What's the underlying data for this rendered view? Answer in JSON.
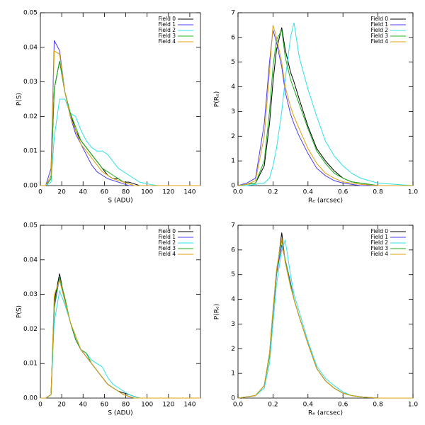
{
  "chart_data": [
    {
      "type": "line",
      "x_label": "S (ADU)",
      "y_label": "P(S)",
      "legend": "upper right",
      "grid": false,
      "x": [
        0,
        5,
        10,
        13,
        18,
        23,
        28,
        33,
        38,
        43,
        48,
        53,
        58,
        63,
        68,
        73,
        78,
        83,
        88,
        93,
        100,
        110,
        120,
        130,
        140,
        150
      ],
      "xlim": [
        0,
        150
      ],
      "xticks": [
        0,
        20,
        40,
        60,
        80,
        100,
        120,
        140
      ],
      "ylim": [
        0,
        0.05
      ],
      "yticks": [
        {
          "value": 0,
          "label": "0.00"
        },
        0.01,
        0.02,
        0.03,
        0.04,
        0.05
      ],
      "series": [
        {
          "name": "Field 0",
          "color": "#000000",
          "values": [
            0,
            0,
            0.002,
            0.028,
            0.036,
            0.027,
            0.021,
            0.016,
            0.013,
            0.011,
            0.009,
            0.007,
            0.005,
            0.003,
            0.002,
            0.002,
            0.001,
            0.001,
            0.0005,
            0,
            0,
            0,
            0,
            0,
            0,
            0
          ]
        },
        {
          "name": "Field 1",
          "color": "#4a3cf0",
          "values": [
            0,
            0,
            0.005,
            0.042,
            0.039,
            0.027,
            0.02,
            0.015,
            0.012,
            0.009,
            0.006,
            0.004,
            0.003,
            0.002,
            0.0015,
            0.001,
            0.0005,
            0,
            0,
            0,
            0,
            0,
            0,
            0,
            0,
            0
          ]
        },
        {
          "name": "Field 2",
          "color": "#30e0e8",
          "values": [
            0,
            0,
            0.001,
            0.014,
            0.025,
            0.025,
            0.021,
            0.02,
            0.016,
            0.013,
            0.011,
            0.01,
            0.01,
            0.009,
            0.007,
            0.005,
            0.004,
            0.003,
            0.002,
            0.001,
            0.0005,
            0,
            0,
            0,
            0,
            0
          ]
        },
        {
          "name": "Field 3",
          "color": "#18b018",
          "values": [
            0,
            0,
            0.002,
            0.028,
            0.036,
            0.027,
            0.021,
            0.017,
            0.013,
            0.011,
            0.009,
            0.007,
            0.005,
            0.004,
            0.003,
            0.002,
            0.001,
            0.0005,
            0,
            0,
            0,
            0,
            0,
            0,
            0,
            0
          ]
        },
        {
          "name": "Field 4",
          "color": "#e0a010",
          "values": [
            0,
            0,
            0.003,
            0.039,
            0.038,
            0.027,
            0.02,
            0.016,
            0.012,
            0.01,
            0.008,
            0.006,
            0.004,
            0.003,
            0.002,
            0.0015,
            0.001,
            0.0005,
            0,
            0,
            0,
            0,
            0,
            0,
            0,
            0
          ]
        }
      ]
    },
    {
      "type": "line",
      "x_label": "Rₑ (arcsec)",
      "y_label": "P(Rₑ)",
      "legend": "upper right",
      "grid": false,
      "x": [
        0,
        0.05,
        0.1,
        0.15,
        0.18,
        0.2,
        0.22,
        0.25,
        0.27,
        0.3,
        0.32,
        0.35,
        0.4,
        0.45,
        0.5,
        0.55,
        0.6,
        0.65,
        0.7,
        0.8,
        0.9,
        1.0
      ],
      "xlim": [
        0,
        1
      ],
      "xticks": [
        {
          "value": 0,
          "label": "0.0"
        },
        0.2,
        0.4,
        0.6,
        0.8,
        {
          "value": 1,
          "label": "1.0"
        }
      ],
      "ylim": [
        0,
        7
      ],
      "yticks": [
        0,
        1,
        2,
        3,
        4,
        5,
        6,
        7
      ],
      "series": [
        {
          "name": "Field 0",
          "color": "#000000",
          "values": [
            0,
            0.05,
            0.1,
            0.8,
            2.5,
            4.2,
            5.5,
            6.4,
            5.5,
            4.6,
            4.2,
            3.5,
            2.4,
            1.5,
            1.0,
            0.6,
            0.3,
            0.15,
            0.1,
            0,
            0,
            0
          ]
        },
        {
          "name": "Field 1",
          "color": "#4a3cf0",
          "values": [
            0,
            0.1,
            0.3,
            2.5,
            5.0,
            6.3,
            5.8,
            4.8,
            3.8,
            2.9,
            2.5,
            2.0,
            1.3,
            0.7,
            0.4,
            0.2,
            0.1,
            0.05,
            0,
            0,
            0,
            0
          ]
        },
        {
          "name": "Field 2",
          "color": "#30e0e8",
          "values": [
            0,
            0,
            0.05,
            0.1,
            0.3,
            0.8,
            1.5,
            3.0,
            4.3,
            6.0,
            6.6,
            5.2,
            3.9,
            2.8,
            1.8,
            1.2,
            0.8,
            0.5,
            0.3,
            0.1,
            0.05,
            0
          ]
        },
        {
          "name": "Field 3",
          "color": "#18b018",
          "values": [
            0,
            0.05,
            0.1,
            1.0,
            3.0,
            4.8,
            5.9,
            6.3,
            5.2,
            4.3,
            3.9,
            3.3,
            2.3,
            1.4,
            0.9,
            0.5,
            0.3,
            0.15,
            0.1,
            0,
            0,
            0
          ]
        },
        {
          "name": "Field 4",
          "color": "#e0a010",
          "values": [
            0,
            0.05,
            0.2,
            2.0,
            4.6,
            6.5,
            6.0,
            5.0,
            4.0,
            3.2,
            2.8,
            2.3,
            1.5,
            0.9,
            0.5,
            0.3,
            0.15,
            0.1,
            0.05,
            0,
            0,
            0
          ]
        }
      ]
    },
    {
      "type": "line",
      "x_label": "S (ADU)",
      "y_label": "P(S)",
      "legend": "upper right",
      "grid": false,
      "x": [
        0,
        5,
        10,
        13,
        18,
        23,
        28,
        33,
        38,
        43,
        48,
        53,
        58,
        63,
        68,
        73,
        78,
        83,
        88,
        93,
        100,
        110,
        120,
        130,
        140,
        150
      ],
      "xlim": [
        0,
        150
      ],
      "xticks": [
        0,
        20,
        40,
        60,
        80,
        100,
        120,
        140
      ],
      "ylim": [
        0,
        0.05
      ],
      "yticks": [
        {
          "value": 0,
          "label": "0.00"
        },
        0.01,
        0.02,
        0.03,
        0.04,
        0.05
      ],
      "series": [
        {
          "name": "Field 0",
          "color": "#000000",
          "values": [
            0,
            0,
            0.001,
            0.028,
            0.036,
            0.028,
            0.022,
            0.017,
            0.014,
            0.012,
            0.01,
            0.008,
            0.006,
            0.004,
            0.003,
            0.002,
            0.0015,
            0.001,
            0.0005,
            0,
            0,
            0,
            0,
            0,
            0,
            0
          ]
        },
        {
          "name": "Field 1",
          "color": "#4a3cf0",
          "values": [
            0,
            0,
            0.001,
            0.026,
            0.035,
            0.028,
            0.022,
            0.017,
            0.014,
            0.012,
            0.01,
            0.008,
            0.006,
            0.004,
            0.003,
            0.002,
            0.001,
            0.0005,
            0,
            0,
            0,
            0,
            0,
            0,
            0,
            0
          ]
        },
        {
          "name": "Field 2",
          "color": "#30e0e8",
          "values": [
            0,
            0,
            0.001,
            0.022,
            0.031,
            0.027,
            0.022,
            0.018,
            0.014,
            0.013,
            0.011,
            0.01,
            0.009,
            0.006,
            0.004,
            0.003,
            0.002,
            0.001,
            0.0005,
            0,
            0,
            0,
            0,
            0,
            0,
            0
          ]
        },
        {
          "name": "Field 3",
          "color": "#18b018",
          "values": [
            0,
            0,
            0.001,
            0.027,
            0.035,
            0.029,
            0.022,
            0.017,
            0.014,
            0.013,
            0.01,
            0.008,
            0.006,
            0.004,
            0.003,
            0.002,
            0.001,
            0.0005,
            0,
            0,
            0,
            0,
            0,
            0,
            0,
            0
          ]
        },
        {
          "name": "Field 4",
          "color": "#e0a010",
          "values": [
            0,
            0,
            0.001,
            0.03,
            0.034,
            0.028,
            0.022,
            0.018,
            0.014,
            0.012,
            0.01,
            0.008,
            0.006,
            0.004,
            0.003,
            0.002,
            0.001,
            0.0005,
            0,
            0,
            0,
            0,
            0,
            0,
            0,
            0
          ]
        }
      ]
    },
    {
      "type": "line",
      "x_label": "Rₑ (arcsec)",
      "y_label": "P(Rₑ)",
      "legend": "upper right",
      "grid": false,
      "x": [
        0,
        0.05,
        0.1,
        0.15,
        0.18,
        0.2,
        0.22,
        0.25,
        0.27,
        0.3,
        0.32,
        0.35,
        0.4,
        0.45,
        0.5,
        0.55,
        0.6,
        0.65,
        0.7,
        0.8,
        0.9,
        1.0
      ],
      "xlim": [
        0,
        1
      ],
      "xticks": [
        {
          "value": 0,
          "label": "0.0"
        },
        0.2,
        0.4,
        0.6,
        0.8,
        {
          "value": 1,
          "label": "1.0"
        }
      ],
      "ylim": [
        0,
        7
      ],
      "yticks": [
        0,
        1,
        2,
        3,
        4,
        5,
        6,
        7
      ],
      "series": [
        {
          "name": "Field 0",
          "color": "#000000",
          "values": [
            0,
            0.05,
            0.1,
            0.5,
            1.8,
            3.5,
            5.0,
            6.7,
            5.5,
            4.6,
            4.0,
            3.3,
            2.2,
            1.2,
            0.7,
            0.4,
            0.2,
            0.1,
            0.05,
            0,
            0,
            0
          ]
        },
        {
          "name": "Field 1",
          "color": "#4a3cf0",
          "values": [
            0,
            0.05,
            0.1,
            0.5,
            1.7,
            3.4,
            5.0,
            6.2,
            5.6,
            4.7,
            4.0,
            3.3,
            2.2,
            1.2,
            0.7,
            0.4,
            0.2,
            0.1,
            0.05,
            0,
            0,
            0
          ]
        },
        {
          "name": "Field 2",
          "color": "#30e0e8",
          "values": [
            0,
            0.05,
            0.1,
            0.4,
            1.4,
            3.0,
            4.6,
            6.0,
            6.4,
            5.0,
            4.2,
            3.5,
            2.3,
            1.3,
            0.8,
            0.5,
            0.25,
            0.1,
            0.05,
            0,
            0,
            0
          ]
        },
        {
          "name": "Field 3",
          "color": "#18b018",
          "values": [
            0,
            0.05,
            0.1,
            0.5,
            1.7,
            3.5,
            5.1,
            6.4,
            5.6,
            4.6,
            4.0,
            3.3,
            2.2,
            1.2,
            0.7,
            0.4,
            0.2,
            0.1,
            0.05,
            0,
            0,
            0
          ]
        },
        {
          "name": "Field 4",
          "color": "#e0a010",
          "values": [
            0,
            0.05,
            0.1,
            0.5,
            1.8,
            3.6,
            5.2,
            6.5,
            5.5,
            4.5,
            4.0,
            3.3,
            2.2,
            1.2,
            0.7,
            0.4,
            0.2,
            0.1,
            0.05,
            0,
            0,
            0
          ]
        }
      ]
    }
  ]
}
